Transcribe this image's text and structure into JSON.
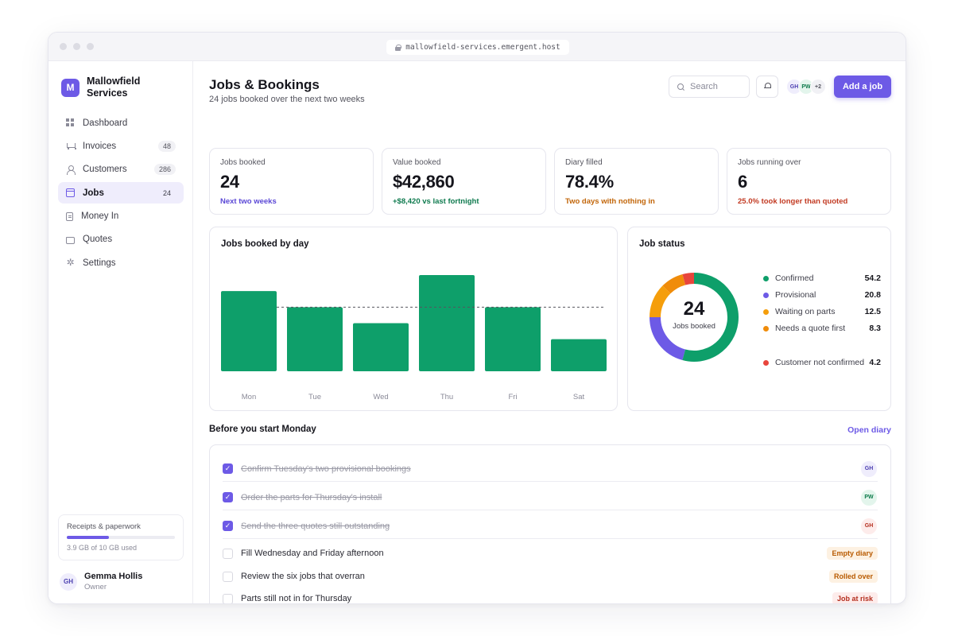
{
  "browser": {
    "url": "mallowfield-services.emergent.host"
  },
  "brand": {
    "logo_letter": "M",
    "name": "Mallowfield Services"
  },
  "sidebar": {
    "items": [
      {
        "label": "Dashboard",
        "badge": "",
        "icon": "grid-icon"
      },
      {
        "label": "Invoices",
        "badge": "48",
        "icon": "cart-icon"
      },
      {
        "label": "Customers",
        "badge": "286",
        "icon": "person-icon"
      },
      {
        "label": "Jobs",
        "badge": "24",
        "icon": "calendar-icon",
        "active": true
      },
      {
        "label": "Money In",
        "badge": "",
        "icon": "document-icon"
      },
      {
        "label": "Quotes",
        "badge": "",
        "icon": "folder-icon"
      },
      {
        "label": "Settings",
        "badge": "",
        "icon": "gear-icon"
      }
    ],
    "storage": {
      "label": "Receipts & paperwork",
      "used_text": "3.9 GB of 10 GB used",
      "fraction": 0.39
    },
    "user": {
      "initials": "GH",
      "name": "Gemma Hollis",
      "role": "Owner"
    }
  },
  "header": {
    "title": "Jobs & Bookings",
    "subtitle": "24 jobs booked over the next two weeks",
    "search_placeholder": "Search",
    "avatars": [
      {
        "initials": "GH",
        "bg": "#efedfc",
        "fg": "#4b3fb0"
      },
      {
        "initials": "PW",
        "bg": "#e3f5ec",
        "fg": "#0d7a4a"
      },
      {
        "initials": "+2",
        "bg": "#f1f1f5",
        "fg": "#55555f"
      }
    ],
    "add_button": "Add a job"
  },
  "stats": [
    {
      "label": "Jobs booked",
      "value": "24",
      "note": "Next two weeks",
      "note_color": "#5b48d6"
    },
    {
      "label": "Value booked",
      "value": "$42,860",
      "note": "+$8,420 vs last fortnight",
      "note_color": "#0e7a4e"
    },
    {
      "label": "Diary filled",
      "value": "78.4%",
      "note": "Two days with nothing in",
      "note_color": "#c2660a"
    },
    {
      "label": "Jobs running over",
      "value": "6",
      "note": "25.0% took longer than quoted",
      "note_color": "#c23a22"
    }
  ],
  "bar_chart": {
    "title": "Jobs booked by day"
  },
  "chart_data": {
    "type": "bar",
    "title": "Jobs booked by day",
    "categories": [
      "Mon",
      "Tue",
      "Wed",
      "Thu",
      "Fri",
      "Sat"
    ],
    "values": [
      5,
      4,
      3,
      6,
      4,
      2
    ],
    "average_line": 4,
    "ylim": [
      0,
      6
    ],
    "color": "#0e9f6a",
    "grid": false
  },
  "donut": {
    "title": "Job status",
    "center_value": "24",
    "center_label": "Jobs booked",
    "segments": [
      {
        "label": "Confirmed",
        "value": 54.2,
        "display": "54.2",
        "color": "#0e9f6a"
      },
      {
        "label": "Provisional",
        "value": 20.8,
        "display": "20.8",
        "color": "#6d5ae6"
      },
      {
        "label": "Waiting on parts",
        "value": 12.5,
        "display": "12.5",
        "color": "#f59e0b"
      },
      {
        "label": "Needs a quote first",
        "value": 8.3,
        "display": "8.3",
        "color": "#f08c0a"
      },
      {
        "label": "Customer not confirmed",
        "value": 4.2,
        "display": "4.2",
        "color": "#e8453c"
      }
    ]
  },
  "tasks": {
    "title": "Before you start Monday",
    "link": "Open diary",
    "items": [
      {
        "text": "Confirm Tuesday's two provisional bookings",
        "done": true,
        "assignee": "GH",
        "tag": ""
      },
      {
        "text": "Order the parts for Thursday's install",
        "done": true,
        "assignee": "PW",
        "tag": ""
      },
      {
        "text": "Send the three quotes still outstanding",
        "done": true,
        "assignee": "GH",
        "tag": ""
      },
      {
        "text": "Fill Wednesday and Friday afternoon",
        "done": false,
        "assignee": "",
        "tag": "Empty diary"
      },
      {
        "text": "Review the six jobs that overran",
        "done": false,
        "assignee": "",
        "tag": "Rolled over"
      },
      {
        "text": "Parts still not in for Thursday",
        "done": false,
        "assignee": "",
        "tag": "Job at risk"
      }
    ]
  }
}
